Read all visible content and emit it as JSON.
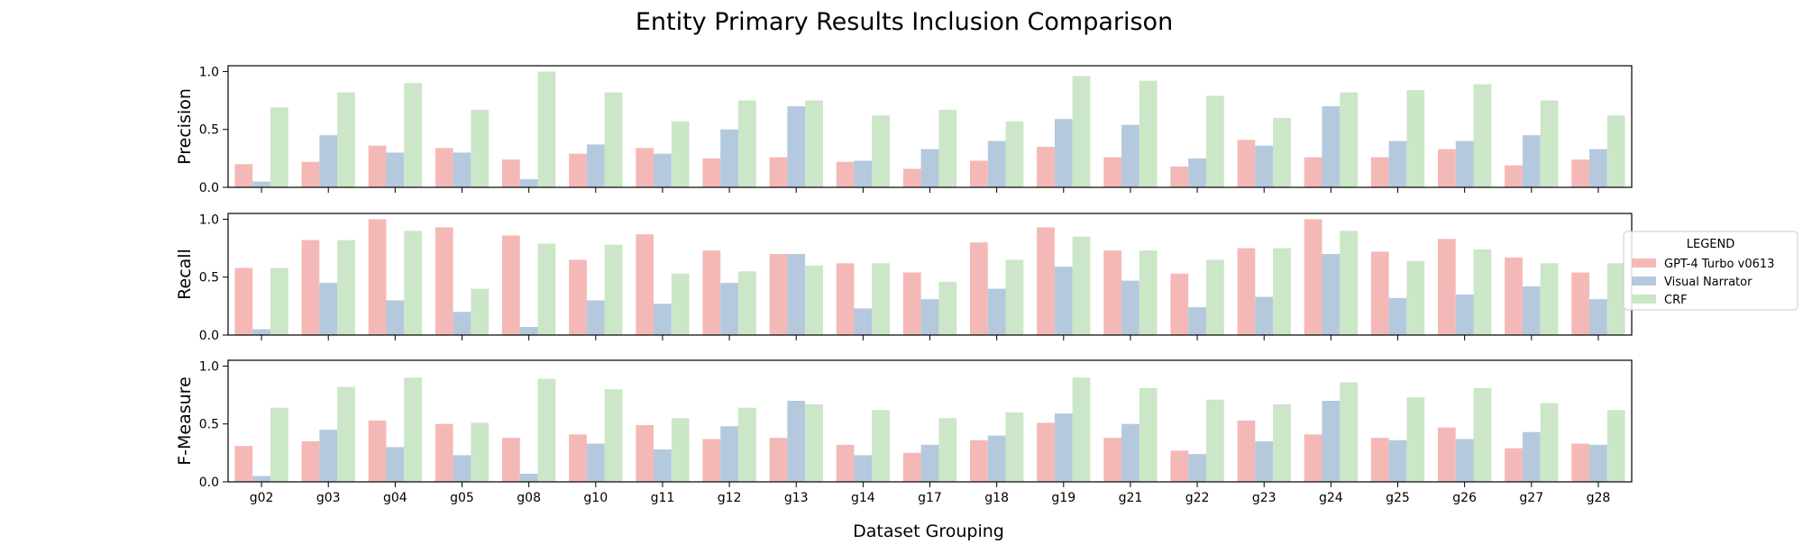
{
  "chart_data": {
    "type": "bar",
    "title": "Entity Primary Results Inclusion Comparison",
    "xlabel": "Dataset Grouping",
    "categories": [
      "g02",
      "g03",
      "g04",
      "g05",
      "g08",
      "g10",
      "g11",
      "g12",
      "g13",
      "g14",
      "g17",
      "g18",
      "g19",
      "g21",
      "g22",
      "g23",
      "g24",
      "g25",
      "g26",
      "g27",
      "g28"
    ],
    "legend": {
      "title": "LEGEND",
      "placement": "right",
      "entries": [
        "GPT-4 Turbo v0613",
        "Visual Narrator",
        "CRF"
      ]
    },
    "colors": [
      "#f4b9b7",
      "#b4c9de",
      "#cce6c8"
    ],
    "grid": false,
    "panels": [
      {
        "ylabel": "Precision",
        "ylim": [
          0,
          1.05
        ],
        "yticks": [
          "0.0",
          "0.5",
          "1.0"
        ],
        "series": [
          {
            "name": "GPT-4 Turbo v0613",
            "values": [
              0.2,
              0.22,
              0.36,
              0.34,
              0.24,
              0.29,
              0.34,
              0.25,
              0.26,
              0.22,
              0.16,
              0.23,
              0.35,
              0.26,
              0.18,
              0.41,
              0.26,
              0.26,
              0.33,
              0.19,
              0.24
            ]
          },
          {
            "name": "Visual Narrator",
            "values": [
              0.05,
              0.45,
              0.3,
              0.3,
              0.07,
              0.37,
              0.29,
              0.5,
              0.7,
              0.23,
              0.33,
              0.4,
              0.59,
              0.54,
              0.25,
              0.36,
              0.7,
              0.4,
              0.4,
              0.45,
              0.33
            ]
          },
          {
            "name": "CRF",
            "values": [
              0.69,
              0.82,
              0.9,
              0.67,
              1.0,
              0.82,
              0.57,
              0.75,
              0.75,
              0.62,
              0.67,
              0.57,
              0.96,
              0.92,
              0.79,
              0.6,
              0.82,
              0.84,
              0.89,
              0.75,
              0.62
            ]
          }
        ]
      },
      {
        "ylabel": "Recall",
        "ylim": [
          0,
          1.05
        ],
        "yticks": [
          "0.0",
          "0.5",
          "1.0"
        ],
        "series": [
          {
            "name": "GPT-4 Turbo v0613",
            "values": [
              0.58,
              0.82,
              1.0,
              0.93,
              0.86,
              0.65,
              0.87,
              0.73,
              0.7,
              0.62,
              0.54,
              0.8,
              0.93,
              0.73,
              0.53,
              0.75,
              1.0,
              0.72,
              0.83,
              0.67,
              0.54
            ]
          },
          {
            "name": "Visual Narrator",
            "values": [
              0.05,
              0.45,
              0.3,
              0.2,
              0.07,
              0.3,
              0.27,
              0.45,
              0.7,
              0.23,
              0.31,
              0.4,
              0.59,
              0.47,
              0.24,
              0.33,
              0.7,
              0.32,
              0.35,
              0.42,
              0.31
            ]
          },
          {
            "name": "CRF",
            "values": [
              0.58,
              0.82,
              0.9,
              0.4,
              0.79,
              0.78,
              0.53,
              0.55,
              0.6,
              0.62,
              0.46,
              0.65,
              0.85,
              0.73,
              0.65,
              0.75,
              0.9,
              0.64,
              0.74,
              0.62,
              0.62
            ]
          }
        ]
      },
      {
        "ylabel": "F-Measure",
        "ylim": [
          0,
          1.05
        ],
        "yticks": [
          "0.0",
          "0.5",
          "1.0"
        ],
        "series": [
          {
            "name": "GPT-4 Turbo v0613",
            "values": [
              0.31,
              0.35,
              0.53,
              0.5,
              0.38,
              0.41,
              0.49,
              0.37,
              0.38,
              0.32,
              0.25,
              0.36,
              0.51,
              0.38,
              0.27,
              0.53,
              0.41,
              0.38,
              0.47,
              0.29,
              0.33
            ]
          },
          {
            "name": "Visual Narrator",
            "values": [
              0.05,
              0.45,
              0.3,
              0.23,
              0.07,
              0.33,
              0.28,
              0.48,
              0.7,
              0.23,
              0.32,
              0.4,
              0.59,
              0.5,
              0.24,
              0.35,
              0.7,
              0.36,
              0.37,
              0.43,
              0.32
            ]
          },
          {
            "name": "CRF",
            "values": [
              0.64,
              0.82,
              0.9,
              0.51,
              0.89,
              0.8,
              0.55,
              0.64,
              0.67,
              0.62,
              0.55,
              0.6,
              0.9,
              0.81,
              0.71,
              0.67,
              0.86,
              0.73,
              0.81,
              0.68,
              0.62
            ]
          }
        ]
      }
    ]
  }
}
